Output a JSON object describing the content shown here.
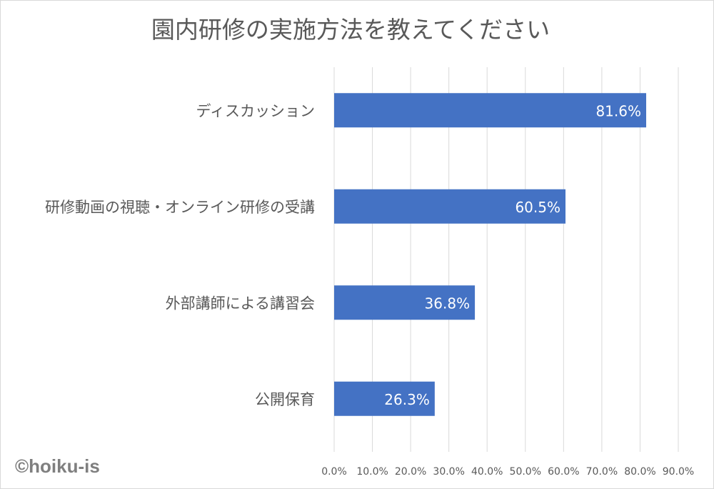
{
  "chart_data": {
    "type": "bar",
    "orientation": "horizontal",
    "title": "園内研修の実施方法を教えてください",
    "categories": [
      "ディスカッション",
      "研修動画の視聴・オンライン研修の受講",
      "外部講師による講習会",
      "公開保育"
    ],
    "values": [
      81.6,
      60.5,
      36.8,
      26.3
    ],
    "data_labels": [
      "81.6%",
      "60.5%",
      "36.8%",
      "26.3%"
    ],
    "xlim": [
      0,
      90
    ],
    "x_ticks": [
      "0.0%",
      "10.0%",
      "20.0%",
      "30.0%",
      "40.0%",
      "50.0%",
      "60.0%",
      "70.0%",
      "80.0%",
      "90.0%"
    ],
    "xlabel": "",
    "ylabel": "",
    "grid": true,
    "legend": "none",
    "bar_color": "#4472c4"
  },
  "watermark": "©hoiku-is"
}
